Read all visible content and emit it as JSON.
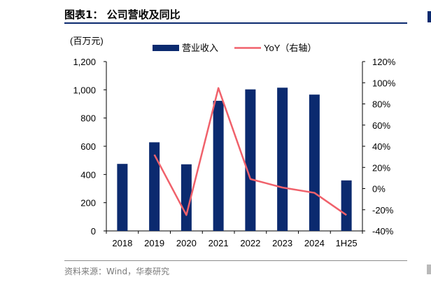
{
  "header": {
    "title": "图表1：  公司营收及同比"
  },
  "footer": {
    "source": "资料来源：Wind，华泰研究"
  },
  "colors": {
    "bar": "#0b2a6f",
    "line": "#f0616b",
    "accent": "#0b2a6f"
  },
  "chart_data": {
    "type": "bar",
    "title": "图表1：  公司营收及同比",
    "unit_label": "(百万元)",
    "categories": [
      "2018",
      "2019",
      "2020",
      "2021",
      "2022",
      "2023",
      "2024",
      "1H25"
    ],
    "series": [
      {
        "name": "营业收入",
        "type": "bar",
        "axis": "left",
        "values": [
          475,
          628,
          472,
          922,
          1003,
          1015,
          966,
          358
        ]
      },
      {
        "name": "YoY（右轴）",
        "type": "line",
        "axis": "right",
        "values": [
          null,
          32,
          -25,
          95,
          9,
          1,
          -4,
          -25
        ]
      }
    ],
    "yleft": {
      "min": 0,
      "max": 1200,
      "ticks": [
        "0",
        "200",
        "400",
        "600",
        "800",
        "1,000",
        "1,200"
      ]
    },
    "yright": {
      "min": -40,
      "max": 120,
      "ticks": [
        "-40%",
        "-20%",
        "0%",
        "20%",
        "40%",
        "60%",
        "80%",
        "100%",
        "120%"
      ]
    },
    "legend_position": "top"
  }
}
